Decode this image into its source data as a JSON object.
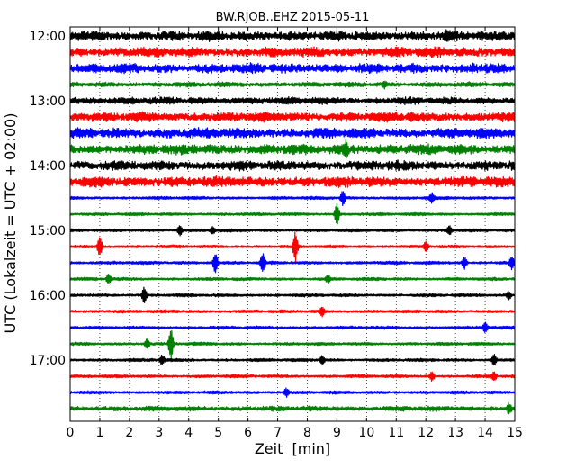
{
  "chart_data": {
    "type": "line",
    "title": "BW.RJOB..EHZ 2015-05-11",
    "xlabel": "Zeit  [min]",
    "ylabel": "UTC (Lokalzeit = UTC + 02:00)",
    "xlim": [
      0,
      15
    ],
    "x_ticks": [
      "0",
      "1",
      "2",
      "3",
      "4",
      "5",
      "6",
      "7",
      "8",
      "9",
      "10",
      "11",
      "12",
      "13",
      "14",
      "15"
    ],
    "y_ticks": [
      "12:00",
      "13:00",
      "14:00",
      "15:00",
      "16:00",
      "17:00"
    ],
    "grid": "vertical-dotted",
    "series": [
      {
        "start": "12:00",
        "color": "#000000",
        "amplitude": 0.28,
        "noise": 0.65,
        "events": [
          {
            "min": 12.7,
            "amp": 0.25
          }
        ]
      },
      {
        "start": "12:15",
        "color": "#ff0000",
        "amplitude": 0.28,
        "noise": 0.65,
        "events": []
      },
      {
        "start": "12:30",
        "color": "#0000ff",
        "amplitude": 0.28,
        "noise": 0.6,
        "events": [
          {
            "min": 13.6,
            "amp": 0.2
          }
        ]
      },
      {
        "start": "12:45",
        "color": "#008000",
        "amplitude": 0.15,
        "noise": 0.45,
        "events": [
          {
            "min": 10.6,
            "amp": 0.18
          }
        ]
      },
      {
        "start": "13:00",
        "color": "#000000",
        "amplitude": 0.22,
        "noise": 0.5,
        "events": []
      },
      {
        "start": "13:15",
        "color": "#ff0000",
        "amplitude": 0.28,
        "noise": 0.55,
        "events": [
          {
            "min": 11.5,
            "amp": 0.2
          }
        ]
      },
      {
        "start": "13:30",
        "color": "#0000ff",
        "amplitude": 0.3,
        "noise": 0.6,
        "events": []
      },
      {
        "start": "13:45",
        "color": "#008000",
        "amplitude": 0.3,
        "noise": 0.55,
        "events": [
          {
            "min": 9.3,
            "amp": 0.45
          }
        ]
      },
      {
        "start": "14:00",
        "color": "#000000",
        "amplitude": 0.28,
        "noise": 0.6,
        "events": []
      },
      {
        "start": "14:15",
        "color": "#ff0000",
        "amplitude": 0.3,
        "noise": 0.6,
        "events": []
      },
      {
        "start": "14:30",
        "color": "#0000ff",
        "amplitude": 0.1,
        "noise": 0.3,
        "events": [
          {
            "min": 9.2,
            "amp": 0.45
          },
          {
            "min": 12.2,
            "amp": 0.3
          }
        ]
      },
      {
        "start": "14:45",
        "color": "#008000",
        "amplitude": 0.1,
        "noise": 0.3,
        "events": [
          {
            "min": 9.0,
            "amp": 0.7
          }
        ]
      },
      {
        "start": "15:00",
        "color": "#000000",
        "amplitude": 0.1,
        "noise": 0.35,
        "events": [
          {
            "min": 3.7,
            "amp": 0.35
          },
          {
            "min": 4.8,
            "amp": 0.25
          },
          {
            "min": 12.8,
            "amp": 0.3
          }
        ]
      },
      {
        "start": "15:15",
        "color": "#ff0000",
        "amplitude": 0.1,
        "noise": 0.35,
        "events": [
          {
            "min": 1.0,
            "amp": 0.6
          },
          {
            "min": 7.6,
            "amp": 0.9
          },
          {
            "min": 12.0,
            "amp": 0.3
          }
        ]
      },
      {
        "start": "15:30",
        "color": "#0000ff",
        "amplitude": 0.1,
        "noise": 0.4,
        "events": [
          {
            "min": 4.9,
            "amp": 0.7
          },
          {
            "min": 6.5,
            "amp": 0.6
          },
          {
            "min": 13.3,
            "amp": 0.4
          },
          {
            "min": 14.9,
            "amp": 0.4
          }
        ]
      },
      {
        "start": "15:45",
        "color": "#008000",
        "amplitude": 0.1,
        "noise": 0.35,
        "events": [
          {
            "min": 1.3,
            "amp": 0.3
          },
          {
            "min": 8.7,
            "amp": 0.2
          }
        ]
      },
      {
        "start": "16:00",
        "color": "#000000",
        "amplitude": 0.1,
        "noise": 0.35,
        "events": [
          {
            "min": 2.5,
            "amp": 0.5
          },
          {
            "min": 14.8,
            "amp": 0.25
          }
        ]
      },
      {
        "start": "16:15",
        "color": "#ff0000",
        "amplitude": 0.1,
        "noise": 0.4,
        "events": [
          {
            "min": 8.5,
            "amp": 0.3
          }
        ]
      },
      {
        "start": "16:30",
        "color": "#0000ff",
        "amplitude": 0.1,
        "noise": 0.4,
        "events": [
          {
            "min": 14.0,
            "amp": 0.35
          }
        ]
      },
      {
        "start": "16:45",
        "color": "#008000",
        "amplitude": 0.1,
        "noise": 0.35,
        "events": [
          {
            "min": 3.4,
            "amp": 1.0
          },
          {
            "min": 2.6,
            "amp": 0.3
          }
        ]
      },
      {
        "start": "17:00",
        "color": "#000000",
        "amplitude": 0.1,
        "noise": 0.35,
        "events": [
          {
            "min": 3.1,
            "amp": 0.3
          },
          {
            "min": 8.5,
            "amp": 0.3
          },
          {
            "min": 14.3,
            "amp": 0.35
          }
        ]
      },
      {
        "start": "17:15",
        "color": "#ff0000",
        "amplitude": 0.1,
        "noise": 0.35,
        "events": [
          {
            "min": 12.2,
            "amp": 0.3
          },
          {
            "min": 14.3,
            "amp": 0.3
          }
        ]
      },
      {
        "start": "17:30",
        "color": "#0000ff",
        "amplitude": 0.1,
        "noise": 0.35,
        "events": [
          {
            "min": 7.3,
            "amp": 0.25
          }
        ]
      },
      {
        "start": "17:45",
        "color": "#008000",
        "amplitude": 0.15,
        "noise": 0.5,
        "events": [
          {
            "min": 14.8,
            "amp": 0.3
          }
        ]
      }
    ]
  }
}
